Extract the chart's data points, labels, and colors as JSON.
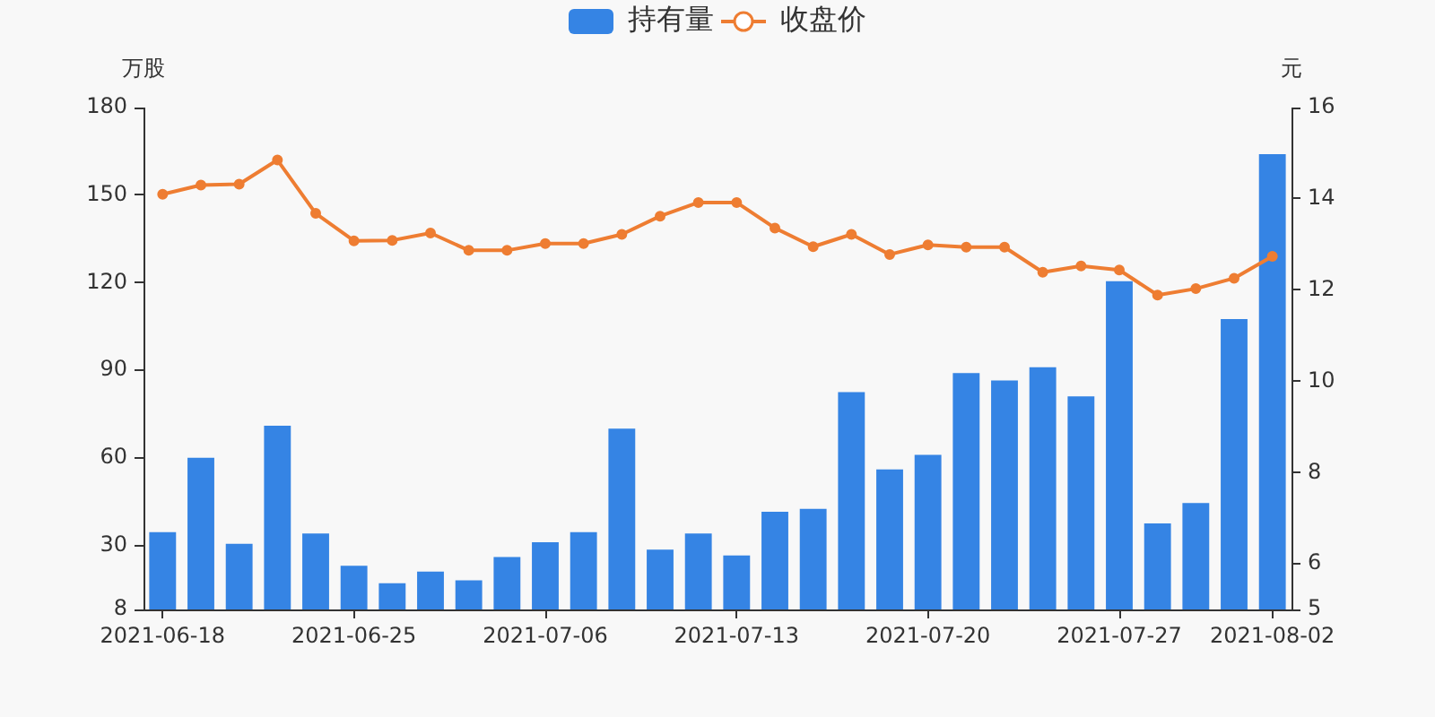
{
  "chart_data": {
    "type": "bar",
    "categories": [
      "2021-06-18",
      null,
      null,
      null,
      null,
      "2021-06-25",
      null,
      null,
      null,
      null,
      "2021-07-06",
      null,
      null,
      null,
      null,
      "2021-07-13",
      null,
      null,
      null,
      null,
      "2021-07-20",
      null,
      null,
      null,
      null,
      "2021-07-27",
      null,
      null,
      null,
      "2021-08-02"
    ],
    "ylabel": "万股",
    "y2label": "元",
    "ylim": [
      8,
      180
    ],
    "yticks": [
      8,
      30,
      60,
      90,
      120,
      150,
      180
    ],
    "y2lim": [
      5,
      16
    ],
    "y2ticks": [
      5,
      6,
      8,
      10,
      12,
      14,
      16
    ],
    "grid": false,
    "legend": "top",
    "series": [
      {
        "name": "持有量",
        "color": "#3584e4",
        "values": [
          34.5,
          60,
          30.5,
          71,
          34,
          23,
          17,
          21,
          18,
          26,
          31,
          34.5,
          70,
          28.5,
          34,
          26.5,
          41.5,
          42.5,
          82.5,
          56,
          61,
          89,
          86.5,
          91,
          81,
          120.5,
          37.5,
          44.5,
          107.5,
          164
        ]
      },
      {
        "name": "收盘价",
        "type": "line",
        "axis": "y2",
        "color": "#ee7d32",
        "marker": "circle",
        "values": [
          14.1,
          14.3,
          14.32,
          14.85,
          13.68,
          13.08,
          13.09,
          13.25,
          12.87,
          12.87,
          13.02,
          13.02,
          13.22,
          13.62,
          13.92,
          13.92,
          13.36,
          12.95,
          13.22,
          12.78,
          12.99,
          12.94,
          12.94,
          12.39,
          12.53,
          12.44,
          11.89,
          12.03,
          12.26,
          12.74
        ]
      }
    ]
  }
}
